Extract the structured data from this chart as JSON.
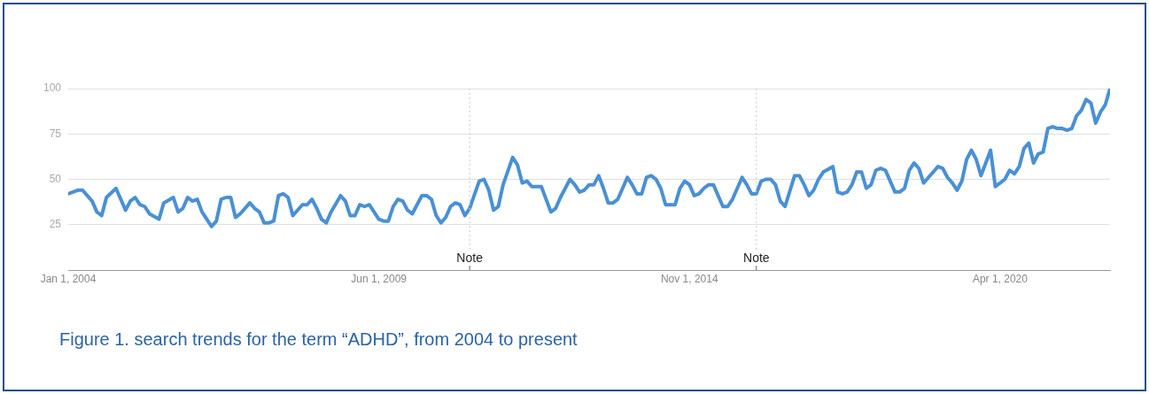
{
  "chart_data": {
    "type": "line",
    "x": [
      "2004-01",
      "2004-03",
      "2004-04",
      "2004-06",
      "2004-07",
      "2004-08",
      "2004-09",
      "2004-11",
      "2005-01",
      "2005-02",
      "2005-03",
      "2005-04",
      "2005-05",
      "2005-06",
      "2005-08",
      "2005-09",
      "2005-11",
      "2005-12",
      "2006-01",
      "2006-02",
      "2006-03",
      "2006-04",
      "2006-05",
      "2006-07",
      "2006-08",
      "2006-09",
      "2006-10",
      "2006-11",
      "2006-12",
      "2007-01",
      "2007-03",
      "2007-04",
      "2007-05",
      "2007-06",
      "2007-07",
      "2007-08",
      "2007-09",
      "2007-10",
      "2007-11",
      "2007-12",
      "2008-02",
      "2008-03",
      "2008-04",
      "2008-05",
      "2008-06",
      "2008-07",
      "2008-08",
      "2008-10",
      "2008-11",
      "2008-12",
      "2009-01",
      "2009-02",
      "2009-03",
      "2009-04",
      "2009-06",
      "2009-07",
      "2009-08",
      "2009-09",
      "2009-10",
      "2009-11",
      "2009-12",
      "2010-01",
      "2010-03",
      "2010-04",
      "2010-05",
      "2010-06",
      "2010-07",
      "2010-08",
      "2010-09",
      "2010-10",
      "2010-11",
      "2010-12",
      "2011-01",
      "2011-03",
      "2011-04",
      "2011-05",
      "2011-06",
      "2011-07",
      "2011-08",
      "2011-10",
      "2011-11",
      "2011-12",
      "2012-01",
      "2012-02",
      "2012-04",
      "2012-06",
      "2012-07",
      "2012-08",
      "2012-10",
      "2012-11",
      "2012-12",
      "2013-01",
      "2013-02",
      "2013-03",
      "2013-04",
      "2013-05",
      "2013-06",
      "2013-07",
      "2013-08",
      "2013-10",
      "2013-11",
      "2013-12",
      "2014-01",
      "2014-02",
      "2014-03",
      "2014-04",
      "2014-05",
      "2014-06",
      "2014-07",
      "2014-08",
      "2014-09",
      "2014-10",
      "2014-11",
      "2014-12",
      "2015-01",
      "2015-02",
      "2015-03",
      "2015-04",
      "2015-06",
      "2015-07",
      "2015-08",
      "2015-10",
      "2015-11",
      "2015-12",
      "2016-01",
      "2016-02",
      "2016-03",
      "2016-04",
      "2016-05",
      "2016-06",
      "2016-07",
      "2016-09",
      "2016-10",
      "2016-11",
      "2016-12",
      "2017-01",
      "2017-02",
      "2017-03",
      "2017-05",
      "2017-06",
      "2017-07",
      "2017-08",
      "2017-09",
      "2017-10",
      "2017-11",
      "2017-12",
      "2018-01",
      "2018-02",
      "2018-03",
      "2018-04",
      "2018-06",
      "2018-07",
      "2018-08",
      "2018-09",
      "2018-10",
      "2018-11",
      "2018-12",
      "2019-01",
      "2019-03",
      "2019-04",
      "2019-05",
      "2019-06",
      "2019-07",
      "2019-08",
      "2019-09",
      "2019-10",
      "2019-11",
      "2019-12",
      "2020-02",
      "2020-03",
      "2020-04",
      "2020-05",
      "2020-06",
      "2020-07",
      "2020-08",
      "2020-09",
      "2020-10",
      "2020-11",
      "2020-12",
      "2021-01",
      "2021-02",
      "2021-03",
      "2021-04",
      "2021-05",
      "2021-06",
      "2021-07",
      "2021-08",
      "2021-09",
      "2021-10",
      "2021-11",
      "2021-12",
      "2022-01",
      "2022-02",
      "2022-03"
    ],
    "series": [
      {
        "color": "#4a90d6",
        "values": [
          42,
          44,
          44,
          38,
          32,
          30,
          40,
          45,
          33,
          38,
          40,
          36,
          35,
          31,
          28,
          37,
          40,
          32,
          34,
          40,
          38,
          39,
          32,
          24,
          27,
          39,
          40,
          40,
          29,
          31,
          37,
          34,
          32,
          26,
          26,
          27,
          41,
          42,
          40,
          30,
          36,
          36,
          39,
          34,
          28,
          26,
          32,
          41,
          38,
          30,
          30,
          36,
          35,
          36,
          28,
          27,
          27,
          35,
          39,
          38,
          33,
          31,
          41,
          41,
          39,
          30,
          26,
          29,
          35,
          37,
          36,
          30,
          34,
          49,
          50,
          44,
          33,
          35,
          47,
          62,
          58,
          48,
          49,
          46,
          46,
          32,
          34,
          40,
          50,
          47,
          43,
          44,
          47,
          47,
          52,
          45,
          37,
          37,
          39,
          51,
          47,
          42,
          42,
          51,
          52,
          50,
          45,
          36,
          36,
          36,
          45,
          49,
          47,
          41,
          42,
          45,
          47,
          47,
          35,
          35,
          39,
          51,
          47,
          42,
          42,
          49,
          50,
          50,
          47,
          38,
          35,
          52,
          52,
          47,
          41,
          44,
          50,
          54,
          57,
          43,
          42,
          43,
          47,
          54,
          54,
          45,
          47,
          55,
          56,
          55,
          43,
          43,
          45,
          55,
          59,
          56,
          48,
          51,
          57,
          56,
          51,
          48,
          44,
          49,
          61,
          66,
          61,
          52,
          66,
          46,
          48,
          50,
          55,
          53,
          57,
          67,
          70,
          59,
          64,
          65,
          78,
          79,
          78,
          78,
          77,
          78,
          85,
          88,
          94,
          92,
          81,
          87,
          91,
          100
        ]
      }
    ],
    "xlim": [
      "2004-01",
      "2022-03"
    ],
    "xticks": [
      {
        "value": "2004-01-01",
        "label": "Jan 1, 2004"
      },
      {
        "value": "2009-06-01",
        "label": "Jun 1, 2009"
      },
      {
        "value": "2014-11-01",
        "label": "Nov 1, 2014"
      },
      {
        "value": "2020-04-01",
        "label": "Apr 1, 2020"
      }
    ],
    "ylim": [
      0,
      100
    ],
    "yticks": [
      25,
      50,
      75,
      100
    ],
    "ref_lines": [
      {
        "axis": "x",
        "value": "2011-01",
        "label": "Note",
        "color": "#c8c8c8",
        "line_style": "dotted"
      },
      {
        "axis": "x",
        "value": "2016-01",
        "label": "Note",
        "color": "#c8c8c8",
        "line_style": "dotted"
      }
    ],
    "grid": "y",
    "annotations": [
      "Figure 1. search trends for the term “ADHD”, from 2004 to present"
    ]
  }
}
